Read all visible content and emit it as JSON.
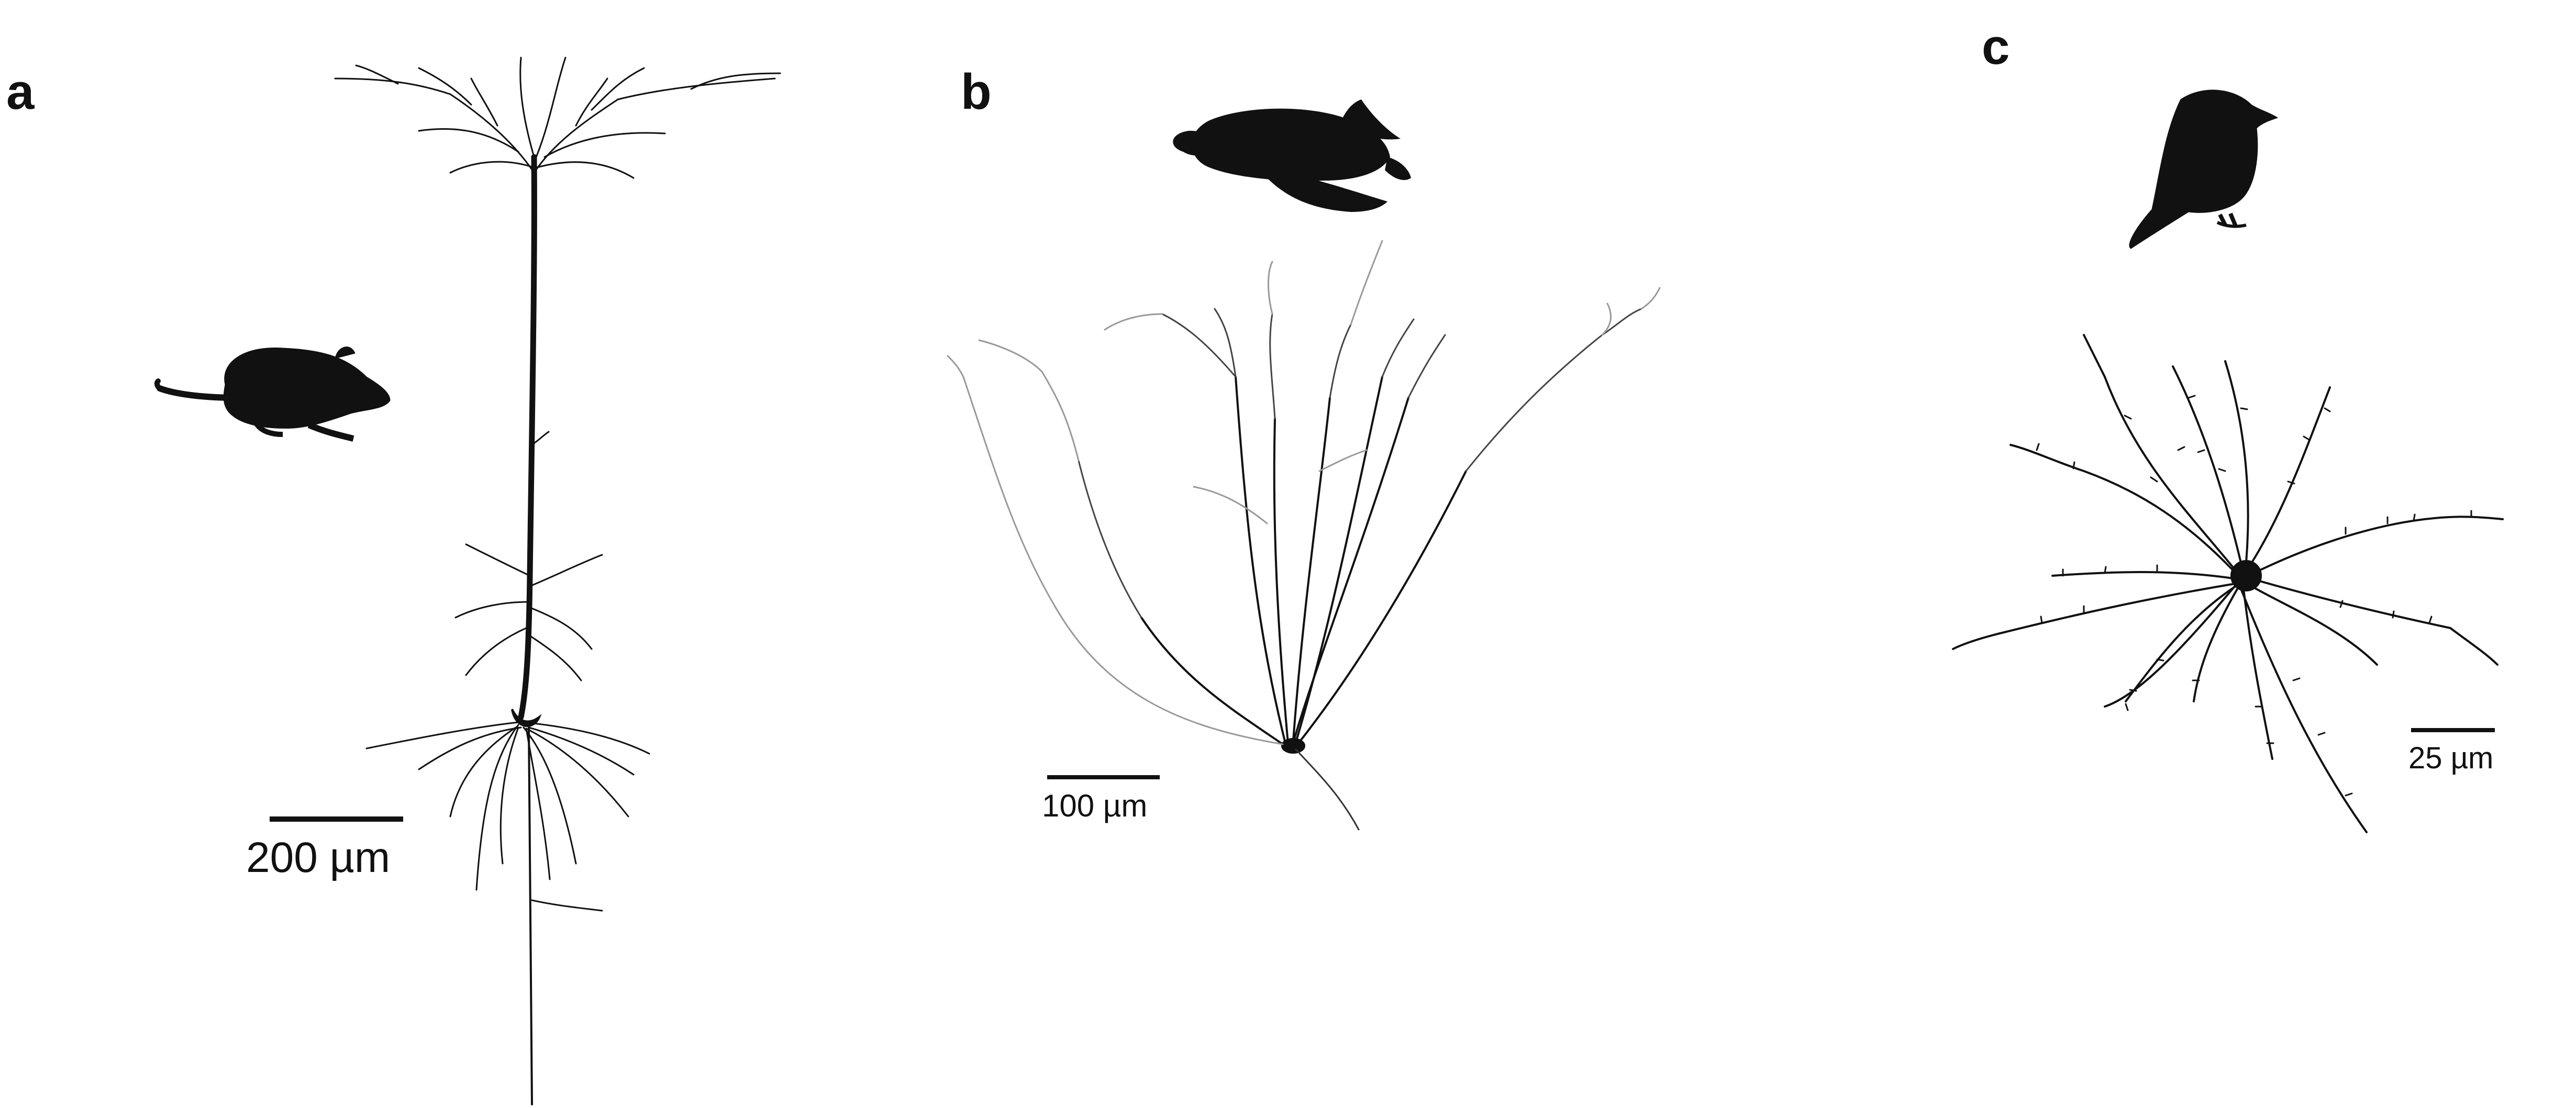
{
  "panels": [
    {
      "letter": "a",
      "animal_icon": "mouse-silhouette-icon",
      "scale_bar_label": "200 µm"
    },
    {
      "letter": "b",
      "animal_icon": "turtle-silhouette-icon",
      "scale_bar_label": "100 µm"
    },
    {
      "letter": "c",
      "animal_icon": "bird-silhouette-icon",
      "scale_bar_label": "25 µm"
    }
  ],
  "colors": {
    "ink": "#111111",
    "background": "#ffffff"
  }
}
